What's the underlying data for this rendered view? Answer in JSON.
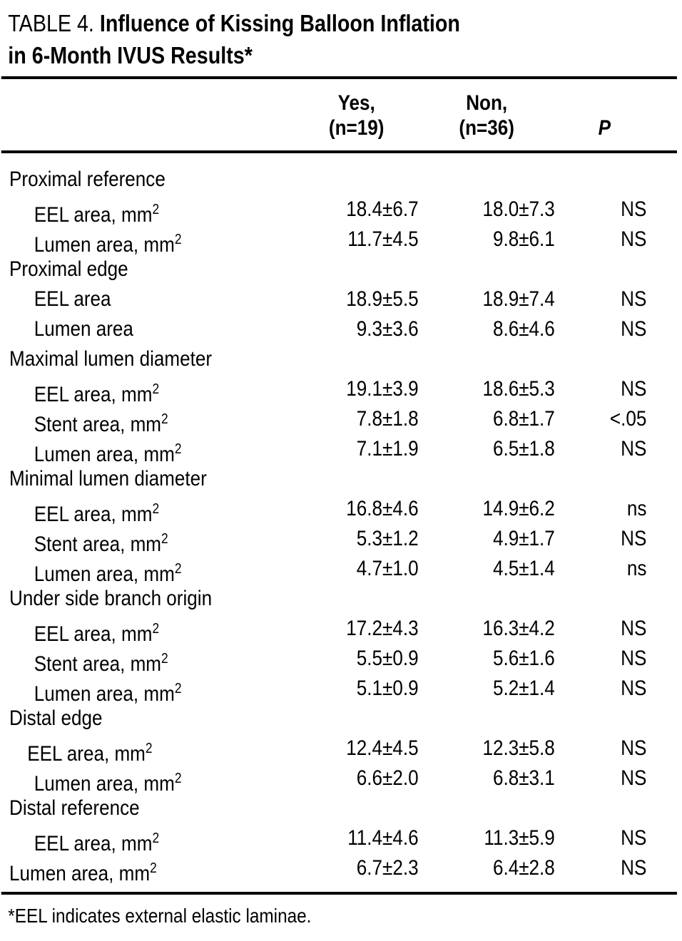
{
  "title": {
    "prefix": "TABLE 4. ",
    "line1": "Influence of Kissing Balloon Inflation",
    "line2": "in 6-Month IVUS Results*"
  },
  "table": {
    "columns": {
      "yes_line1": "Yes,",
      "yes_line2": "(n=19)",
      "non_line1": "Non,",
      "non_line2": "(n=36)",
      "p": "P"
    },
    "rows": [
      {
        "label": "Proximal reference",
        "group": true,
        "indent": 0
      },
      {
        "label": "EEL area, mm",
        "sup": "2",
        "indent": 1,
        "yes": "18.4±6.7",
        "non": "18.0±7.3",
        "p": "NS"
      },
      {
        "label": "Lumen area, mm",
        "sup": "2",
        "indent": 1,
        "yes": "11.7±4.5",
        "non": "9.8±6.1",
        "p": "NS"
      },
      {
        "label": "Proximal edge",
        "group": true,
        "indent": 0
      },
      {
        "label": "EEL area",
        "indent": 1,
        "yes": "18.9±5.5",
        "non": "18.9±7.4",
        "p": "NS"
      },
      {
        "label": "Lumen area",
        "indent": 1,
        "yes": "9.3±3.6",
        "non": "8.6±4.6",
        "p": "NS"
      },
      {
        "label": "Maximal lumen diameter",
        "group": true,
        "indent": 0
      },
      {
        "label": "EEL area, mm",
        "sup": "2",
        "indent": 1,
        "yes": "19.1±3.9",
        "non": "18.6±5.3",
        "p": "NS"
      },
      {
        "label": "Stent area, mm",
        "sup": "2",
        "indent": 1,
        "yes": "7.8±1.8",
        "non": "6.8±1.7",
        "p": "<.05"
      },
      {
        "label": "Lumen area, mm",
        "sup": "2",
        "indent": 1,
        "yes": "7.1±1.9",
        "non": "6.5±1.8",
        "p": "NS"
      },
      {
        "label": "Minimal lumen diameter",
        "group": true,
        "indent": 0
      },
      {
        "label": "EEL area, mm",
        "sup": "2",
        "indent": 1,
        "yes": "16.8±4.6",
        "non": "14.9±6.2",
        "p": "ns"
      },
      {
        "label": "Stent area, mm",
        "sup": "2",
        "indent": 1,
        "yes": "5.3±1.2",
        "non": "4.9±1.7",
        "p": "NS"
      },
      {
        "label": "Lumen area, mm",
        "sup": "2",
        "indent": 1,
        "yes": "4.7±1.0",
        "non": "4.5±1.4",
        "p": "ns"
      },
      {
        "label": "Under side branch origin",
        "group": true,
        "indent": 0
      },
      {
        "label": "EEL area, mm",
        "sup": "2",
        "indent": 1,
        "yes": "17.2±4.3",
        "non": "16.3±4.2",
        "p": "NS"
      },
      {
        "label": "Stent area, mm",
        "sup": "2",
        "indent": 1,
        "yes": "5.5±0.9",
        "non": "5.6±1.6",
        "p": "NS"
      },
      {
        "label": "Lumen area, mm",
        "sup": "2",
        "indent": 1,
        "yes": "5.1±0.9",
        "non": "5.2±1.4",
        "p": "NS"
      },
      {
        "label": "Distal edge",
        "group": true,
        "indent": 0
      },
      {
        "label": "EEL area, mm",
        "sup": "2",
        "indent": 2,
        "yes": "12.4±4.5",
        "non": "12.3±5.8",
        "p": "NS"
      },
      {
        "label": "Lumen area, mm",
        "sup": "2",
        "indent": 1,
        "yes": "6.6±2.0",
        "non": "6.8±3.1",
        "p": "NS"
      },
      {
        "label": "Distal reference",
        "group": true,
        "indent": 0
      },
      {
        "label": "EEL area, mm",
        "sup": "2",
        "indent": 1,
        "yes": "11.4±4.6",
        "non": "11.3±5.9",
        "p": "NS"
      },
      {
        "label": "Lumen area, mm",
        "sup": "2",
        "indent": 0,
        "yes": "6.7±2.3",
        "non": "6.4±2.8",
        "p": "NS"
      }
    ]
  },
  "footnote": "*EEL indicates external elastic laminae.",
  "colors": {
    "text": "#000000",
    "background": "#ffffff",
    "rule": "#000000"
  }
}
